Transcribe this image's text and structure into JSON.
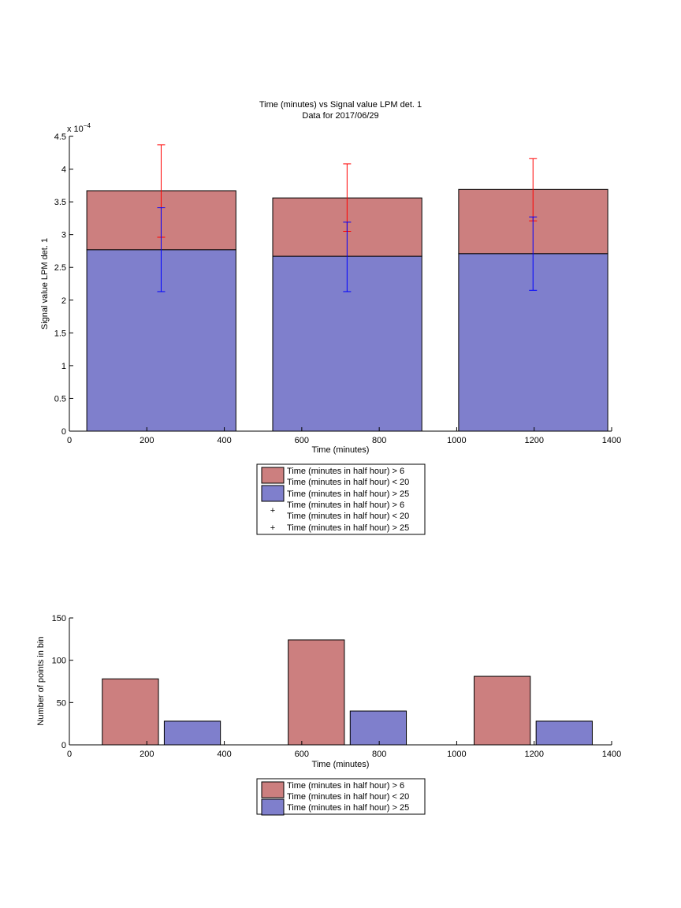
{
  "colors": {
    "red_fill": "#cc7f7f",
    "blue_fill": "#7f7fcc",
    "red_err": "#ff0000",
    "blue_err": "#0000ff",
    "edge": "#000000"
  },
  "legend_labels": {
    "gt6": "Time (minutes in half hour) > 6",
    "lt20": "Time (minutes in half hour) < 20",
    "gt25": "Time (minutes in half hour) > 25"
  },
  "chart_data": [
    {
      "type": "bar",
      "stacked": true,
      "title": "Time (minutes) vs Signal value LPM det. 1",
      "subtitle": "Data for 2017/06/29",
      "xlabel": "Time (minutes)",
      "ylabel": "Signal value LPM det. 1",
      "y_exponent_label": "x 10",
      "y_exponent_power": "−4",
      "xlim": [
        0,
        1400
      ],
      "ylim": [
        0,
        4.5
      ],
      "y_scale_factor": 0.0001,
      "xticks": [
        "0",
        "200",
        "400",
        "600",
        "800",
        "1000",
        "1200",
        "1400"
      ],
      "yticks": [
        "0",
        "0.5",
        "1",
        "1.5",
        "2",
        "2.5",
        "3",
        "3.5",
        "4",
        "4.5"
      ],
      "grid": false,
      "legend_position": "below",
      "bar_edges": [
        [
          45,
          430
        ],
        [
          525,
          910
        ],
        [
          1005,
          1390
        ]
      ],
      "series": [
        {
          "name": "Time (minutes in half hour) > 25",
          "color": "blue",
          "values": [
            2.77,
            2.67,
            2.71
          ]
        },
        {
          "name": "Time (minutes in half hour) > 6 / Time (minutes in half hour) < 20",
          "color": "red",
          "values": [
            0.9,
            0.89,
            0.98
          ]
        }
      ],
      "error_bars": [
        {
          "name": "Time (minutes in half hour) > 6 / Time (minutes in half hour) < 20",
          "color": "red",
          "x": [
            237,
            717,
            1197
          ],
          "center": [
            3.67,
            3.56,
            3.69
          ],
          "low": [
            2.96,
            3.05,
            3.21
          ],
          "high": [
            4.37,
            4.08,
            4.16
          ]
        },
        {
          "name": "Time (minutes in half hour) > 25",
          "color": "blue",
          "x": [
            237,
            717,
            1197
          ],
          "center": [
            2.77,
            2.67,
            2.71
          ],
          "low": [
            2.13,
            2.13,
            2.15
          ],
          "high": [
            3.41,
            3.19,
            3.27
          ]
        }
      ]
    },
    {
      "type": "bar",
      "grouped": true,
      "xlabel": "Time (minutes)",
      "ylabel": "Number of points in bin",
      "xlim": [
        0,
        1400
      ],
      "ylim": [
        0,
        150
      ],
      "xticks": [
        "0",
        "200",
        "400",
        "600",
        "800",
        "1000",
        "1200",
        "1400"
      ],
      "yticks": [
        "0",
        "50",
        "100",
        "150"
      ],
      "grid": false,
      "legend_position": "below",
      "bars": [
        {
          "series": "Time (minutes in half hour) > 6 / Time (minutes in half hour) < 20",
          "color": "red",
          "x0": 85,
          "x1": 230,
          "value": 78
        },
        {
          "series": "Time (minutes in half hour) > 25",
          "color": "blue",
          "x0": 245,
          "x1": 390,
          "value": 28
        },
        {
          "series": "Time (minutes in half hour) > 6 / Time (minutes in half hour) < 20",
          "color": "red",
          "x0": 565,
          "x1": 710,
          "value": 124
        },
        {
          "series": "Time (minutes in half hour) > 25",
          "color": "blue",
          "x0": 725,
          "x1": 870,
          "value": 40
        },
        {
          "series": "Time (minutes in half hour) > 6 / Time (minutes in half hour) < 20",
          "color": "red",
          "x0": 1045,
          "x1": 1190,
          "value": 81
        },
        {
          "series": "Time (minutes in half hour) > 25",
          "color": "blue",
          "x0": 1205,
          "x1": 1350,
          "value": 28
        }
      ]
    }
  ]
}
